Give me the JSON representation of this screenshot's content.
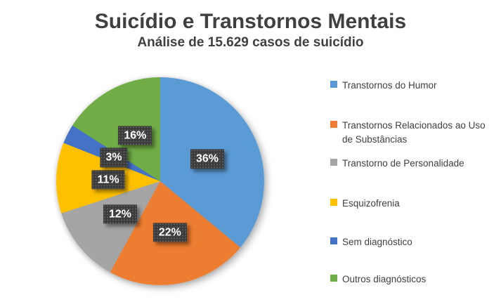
{
  "header": {
    "title": "Suicídio e Transtornos Mentais",
    "subtitle": "Análise de 15.629 casos de suicídio"
  },
  "chart_data": {
    "type": "pie",
    "title": "Suicídio e Transtornos Mentais",
    "subtitle": "Análise de 15.629 casos de suicídio",
    "unit": "%",
    "start_angle_deg": 0,
    "direction": "clockwise",
    "legend_position": "right",
    "label_style": "dark-box-white-text",
    "slices": [
      {
        "label": "Transtornos do Humor",
        "value": 36,
        "display": "36%",
        "color": "#5B9BD5"
      },
      {
        "label": "Transtornos Relacionados ao Uso de Substâncias",
        "value": 22,
        "display": "22%",
        "color": "#ED7D31"
      },
      {
        "label": "Transtorno de Personalidade",
        "value": 12,
        "display": "12%",
        "color": "#A5A5A5"
      },
      {
        "label": "Esquizofrenia",
        "value": 11,
        "display": "11%",
        "color": "#FFC000"
      },
      {
        "label": "Sem diagnóstico",
        "value": 3,
        "display": "3%",
        "color": "#4472C4"
      },
      {
        "label": "Outros diagnósticos",
        "value": 16,
        "display": "16%",
        "color": "#70AD47"
      }
    ]
  },
  "colors": {
    "background": "#FFFFFF",
    "title_text": "#404040",
    "legend_text": "#404040",
    "label_box_bg": "#3B3B3B",
    "label_text": "#FFFFFF"
  }
}
